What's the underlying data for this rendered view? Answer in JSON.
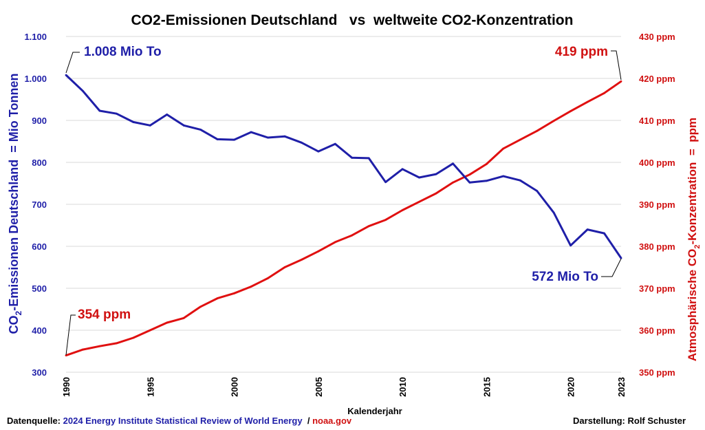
{
  "chart_data": {
    "type": "line",
    "title": "CO2-Emissionen Deutschland   vs  weltweite CO2-Konzentration",
    "xlabel": "Kalenderjahr",
    "x": [
      1990,
      1991,
      1992,
      1993,
      1994,
      1995,
      1996,
      1997,
      1998,
      1999,
      2000,
      2001,
      2002,
      2003,
      2004,
      2005,
      2006,
      2007,
      2008,
      2009,
      2010,
      2011,
      2012,
      2013,
      2014,
      2015,
      2016,
      2017,
      2018,
      2019,
      2020,
      2021,
      2022,
      2023
    ],
    "x_ticks": [
      "1990",
      "1995",
      "2000",
      "2005",
      "2010",
      "2015",
      "2020",
      "2023"
    ],
    "y_left": {
      "label_main": "CO",
      "label_sub": "2",
      "label_rest": "-Emissionen Deutschland  = Mio Tonnen",
      "ylim": [
        300,
        1100
      ],
      "ticks": [
        "300",
        "400",
        "500",
        "600",
        "700",
        "800",
        "900",
        "1.000",
        "1.100"
      ],
      "color": "#1f1fa8"
    },
    "y_right": {
      "label_main": "Atmosphärische CO",
      "label_sub": "2",
      "label_rest": "-Konzentration  =  ppm",
      "ylim": [
        350,
        430
      ],
      "ticks": [
        "350 ppm",
        "360 ppm",
        "370 ppm",
        "380 ppm",
        "390 ppm",
        "400 ppm",
        "410 ppm",
        "420 ppm",
        "430 ppm"
      ],
      "color": "#d01010"
    },
    "series": [
      {
        "axis": "left",
        "color": "#1f1fa8",
        "values": [
          1008,
          970,
          923,
          916,
          896,
          888,
          914,
          888,
          878,
          855,
          854,
          872,
          859,
          862,
          847,
          826,
          844,
          811,
          810,
          753,
          784,
          764,
          772,
          797,
          752,
          756,
          767,
          757,
          732,
          680,
          602,
          640,
          631,
          572
        ]
      },
      {
        "axis": "right",
        "color": "#e01010",
        "values": [
          354.0,
          355.4,
          356.2,
          356.9,
          358.2,
          360.0,
          361.8,
          362.9,
          365.6,
          367.6,
          368.8,
          370.4,
          372.4,
          375.0,
          376.8,
          378.8,
          381.0,
          382.6,
          384.8,
          386.3,
          388.6,
          390.6,
          392.6,
          395.2,
          397.1,
          399.6,
          403.3,
          405.4,
          407.5,
          409.9,
          412.2,
          414.4,
          416.5,
          419.3
        ]
      }
    ],
    "annotations": {
      "blue_start": "1.008 Mio To",
      "blue_end": "572 Mio To",
      "red_start": "354 ppm",
      "red_end": "419 ppm"
    },
    "grid": true
  },
  "footer": {
    "source_label": "Datenquelle: ",
    "source_ei": "2024 Energy Institute Statistical Review of World Energy",
    "source_sep": "  / ",
    "source_noaa": "noaa.gov",
    "author": "Darstellung: Rolf Schuster"
  },
  "colors": {
    "blue": "#1f1fa8",
    "red": "#d01010",
    "source_blue": "#1f1fa8",
    "source_red": "#d01010"
  }
}
